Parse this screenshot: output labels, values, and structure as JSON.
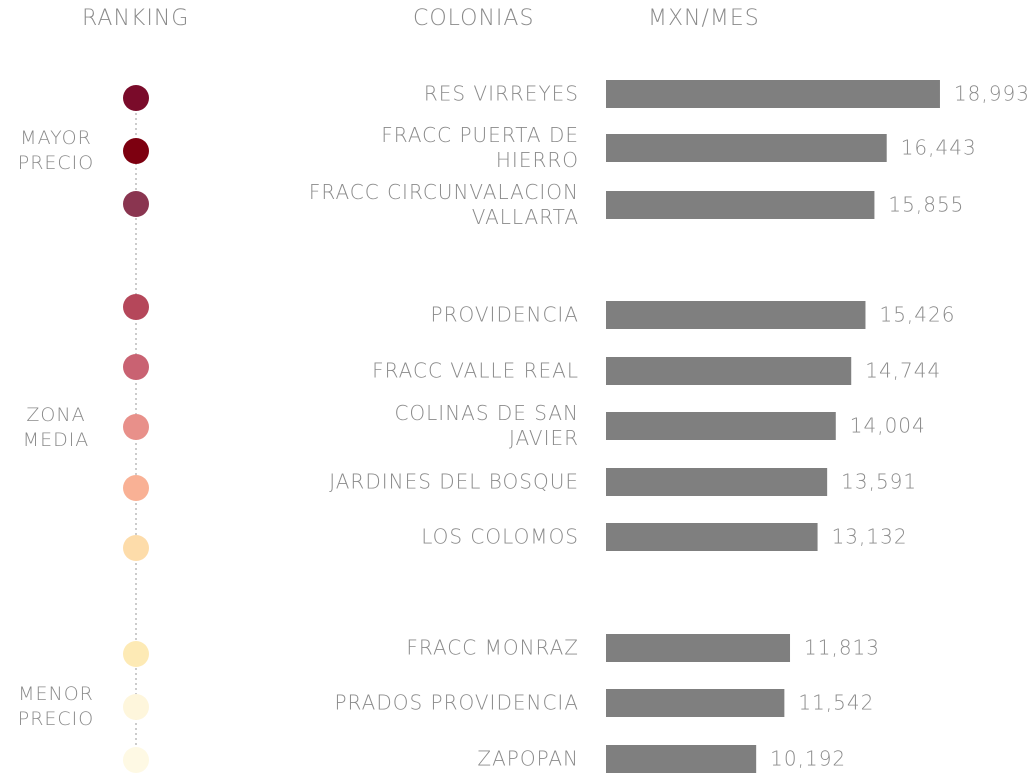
{
  "chart_data": {
    "type": "bar",
    "orientation": "horizontal",
    "headers": [
      "RANKING",
      "COLONIAS",
      "MXN/MES"
    ],
    "groups": [
      {
        "label": "MAYOR\nPRECIO",
        "members": [
          0,
          1,
          2
        ]
      },
      {
        "label": "ZONA\nMEDIA",
        "members": [
          3,
          4,
          5,
          6,
          7
        ]
      },
      {
        "label": "MENOR\nPRECIO",
        "members": [
          8,
          9,
          10
        ]
      }
    ],
    "categories": [
      "RES VIRREYES",
      "FRACC PUERTA DE\nHIERRO",
      "FRACC CIRCUNVALACION\nVALLARTA",
      "PROVIDENCIA",
      "FRACC VALLE REAL",
      "COLINAS DE SAN\nJAVIER",
      "JARDINES DEL BOSQUE",
      "LOS COLOMOS",
      "FRACC MONRAZ",
      "PRADOS PROVIDENCIA",
      "ZAPOPAN"
    ],
    "values": [
      18993,
      16443,
      15855,
      15426,
      14744,
      14004,
      13591,
      13132,
      11813,
      11542,
      10192
    ],
    "value_labels": [
      "18,993",
      "16,443",
      "15,855",
      "15,426",
      "14,744",
      "14,004",
      "13,591",
      "13,132",
      "11,813",
      "11,542",
      "10,192"
    ],
    "color": "#7f7f7f",
    "dot_colors": [
      "#7a0b2a",
      "#7d0010",
      "#8a3550",
      "#b5475a",
      "#c96272",
      "#e8908a",
      "#f9b195",
      "#fddcaa",
      "#fdeab5",
      "#fef6dc",
      "#fef9e4"
    ],
    "xlim": [
      3000,
      19000
    ]
  }
}
